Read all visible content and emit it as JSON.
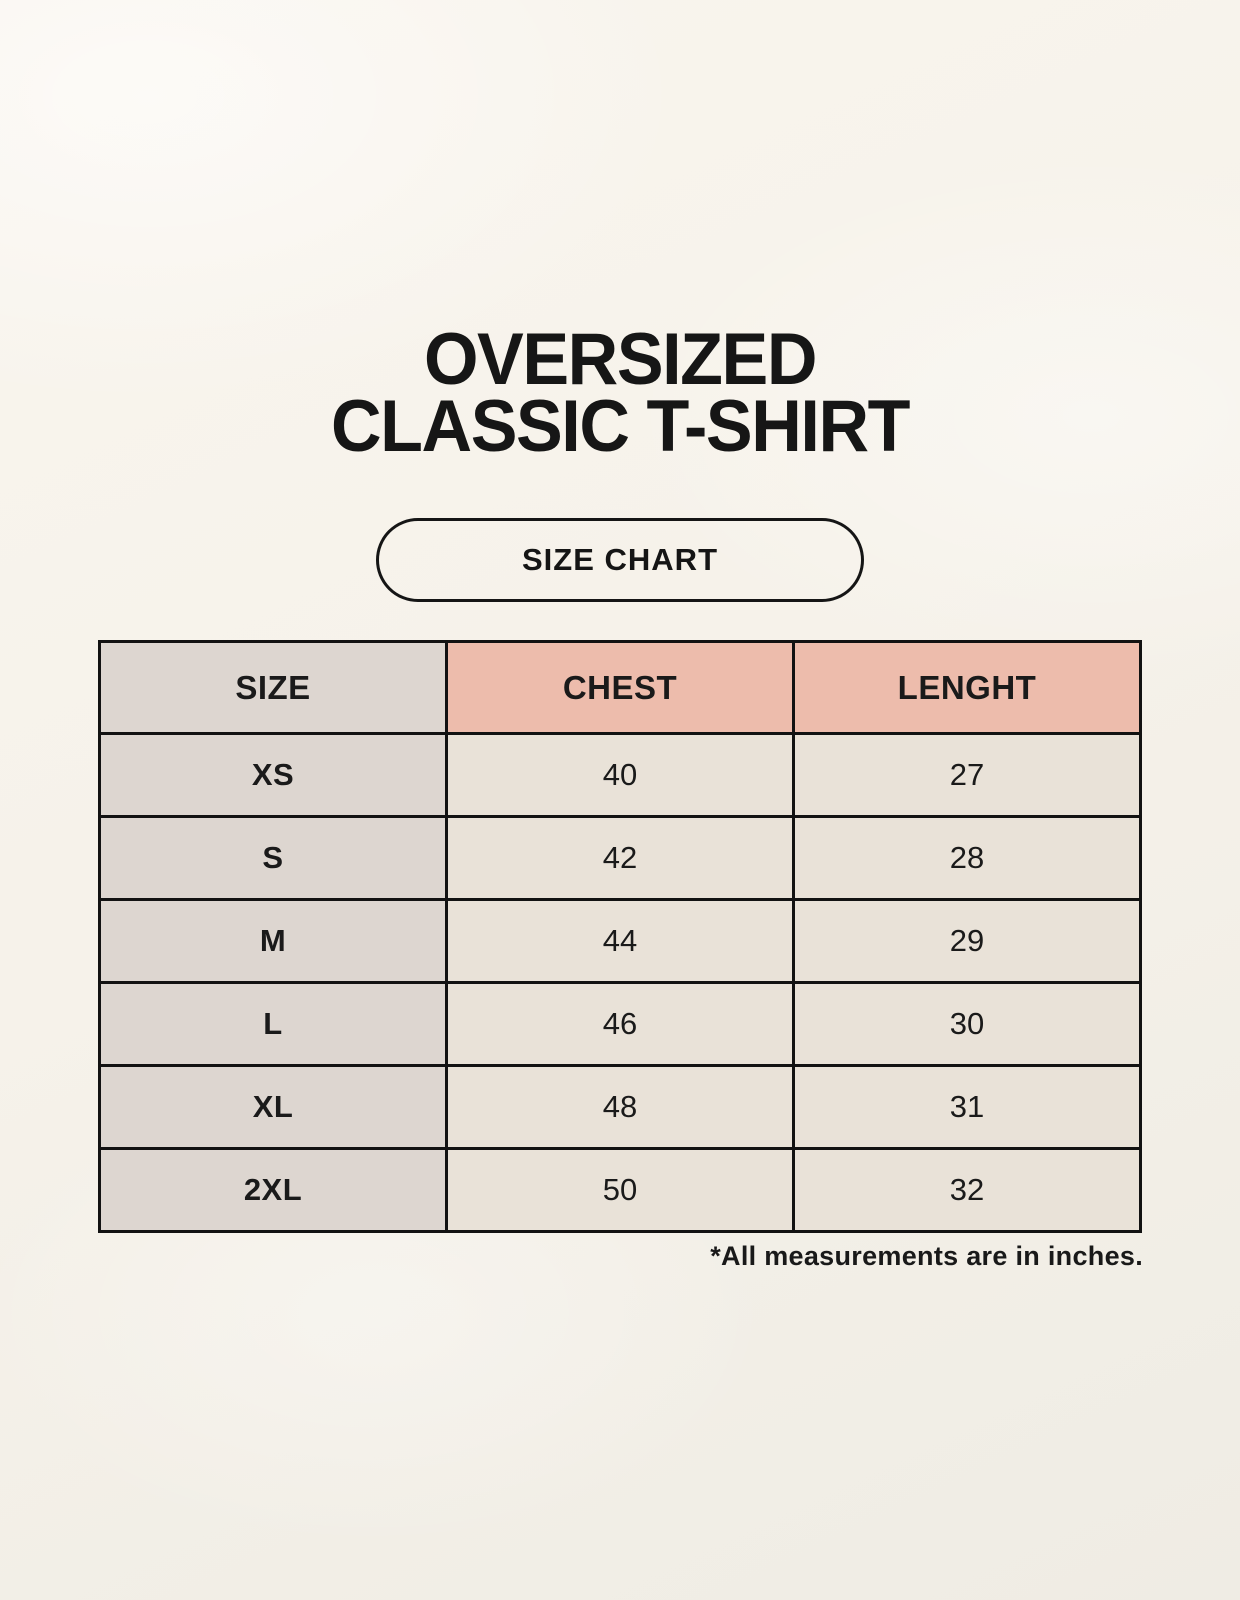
{
  "header": {
    "title_line1": "OVERSIZED",
    "title_line2": "CLASSIC T-SHIRT",
    "badge_label": "SIZE CHART"
  },
  "chart_data": {
    "type": "table",
    "title": "OVERSIZED CLASSIC T-SHIRT",
    "columns": [
      "SIZE",
      "CHEST",
      "LENGHT"
    ],
    "rows": [
      {
        "size": "XS",
        "chest": "40",
        "length": "27"
      },
      {
        "size": "S",
        "chest": "42",
        "length": "28"
      },
      {
        "size": "M",
        "chest": "44",
        "length": "29"
      },
      {
        "size": "L",
        "chest": "46",
        "length": "30"
      },
      {
        "size": "XL",
        "chest": "48",
        "length": "31"
      },
      {
        "size": "2XL",
        "chest": "50",
        "length": "32"
      }
    ],
    "units": "inches"
  },
  "footnote": "*All measurements are in inches.",
  "colors": {
    "background": "#f6f2ea",
    "size_column_bg": "#ddd6d0",
    "header_accent_bg": "#edbcac",
    "cell_bg": "#e9e2d8",
    "border": "#121212",
    "text": "#1a1a1a"
  }
}
